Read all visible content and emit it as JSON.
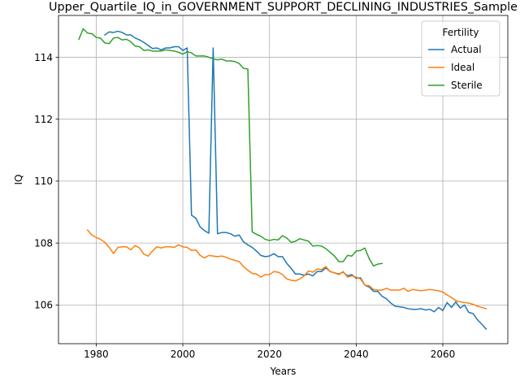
{
  "chart_data": {
    "type": "line",
    "title": "Upper_Quartile_IQ_in_GOVERNMENT_SUPPORT_DECLINING_INDUSTRIES_Sample",
    "xlabel": "Years",
    "ylabel": "IQ",
    "xlim": [
      1971.3,
      2075.0
    ],
    "ylim": [
      104.75,
      115.35
    ],
    "xticks": [
      1980,
      2000,
      2020,
      2040,
      2060
    ],
    "yticks": [
      106,
      108,
      110,
      112,
      114
    ],
    "grid": true,
    "legend": {
      "title": "Fertility",
      "placement": "top-right"
    },
    "series": [
      {
        "name": "Actual",
        "color": "#1f77b4",
        "x": [
          1982,
          1983,
          1984,
          1985,
          1986,
          1987,
          1988,
          1989,
          1990,
          1991,
          1992,
          1993,
          1994,
          1995,
          1996,
          1997,
          1998,
          1999,
          2000,
          2001,
          2002,
          2003,
          2004,
          2005,
          2006,
          2007,
          2008,
          2009,
          2010,
          2011,
          2012,
          2013,
          2014,
          2015,
          2016,
          2017,
          2018,
          2019,
          2020,
          2021,
          2022,
          2023,
          2024,
          2025,
          2026,
          2027,
          2028,
          2029,
          2030,
          2031,
          2032,
          2033,
          2034,
          2035,
          2036,
          2037,
          2038,
          2039,
          2040,
          2041,
          2042,
          2043,
          2044,
          2045,
          2046,
          2047,
          2048,
          2049,
          2050,
          2051,
          2052,
          2053,
          2054,
          2055,
          2056,
          2057,
          2058,
          2059,
          2060,
          2061,
          2062,
          2063,
          2064,
          2065,
          2066,
          2067,
          2068,
          2069,
          2070
        ],
        "y": [
          114.72,
          114.82,
          114.8,
          114.84,
          114.8,
          114.72,
          114.72,
          114.62,
          114.56,
          114.48,
          114.38,
          114.28,
          114.3,
          114.24,
          114.3,
          114.3,
          114.34,
          114.34,
          114.22,
          114.3,
          108.9,
          108.8,
          108.52,
          108.4,
          108.32,
          114.3,
          108.3,
          108.34,
          108.34,
          108.3,
          108.22,
          108.26,
          108.04,
          107.94,
          107.86,
          107.74,
          107.6,
          107.56,
          107.58,
          107.66,
          107.56,
          107.56,
          107.34,
          107.18,
          107.0,
          107.0,
          106.96,
          107.0,
          106.94,
          107.08,
          107.08,
          107.2,
          107.08,
          107.04,
          107.0,
          107.06,
          106.94,
          106.98,
          106.86,
          106.88,
          106.64,
          106.58,
          106.44,
          106.44,
          106.28,
          106.2,
          106.06,
          105.96,
          105.94,
          105.92,
          105.88,
          105.86,
          105.86,
          105.88,
          105.84,
          105.86,
          105.78,
          105.92,
          105.82,
          106.08,
          105.92,
          106.1,
          105.9,
          106.0,
          105.76,
          105.72,
          105.52,
          105.38,
          105.22
        ]
      },
      {
        "name": "Ideal",
        "color": "#ff7f0e",
        "x": [
          1978,
          1979,
          1980,
          1981,
          1982,
          1983,
          1984,
          1985,
          1986,
          1987,
          1988,
          1989,
          1990,
          1991,
          1992,
          1993,
          1994,
          1995,
          1996,
          1997,
          1998,
          1999,
          2000,
          2001,
          2002,
          2003,
          2004,
          2005,
          2006,
          2007,
          2008,
          2009,
          2010,
          2011,
          2012,
          2013,
          2014,
          2015,
          2016,
          2017,
          2018,
          2019,
          2020,
          2021,
          2022,
          2023,
          2024,
          2025,
          2026,
          2027,
          2028,
          2029,
          2030,
          2031,
          2032,
          2033,
          2034,
          2035,
          2036,
          2037,
          2038,
          2039,
          2040,
          2041,
          2042,
          2043,
          2044,
          2045,
          2046,
          2047,
          2048,
          2049,
          2050,
          2051,
          2052,
          2053,
          2054,
          2055,
          2056,
          2057,
          2058,
          2059,
          2060,
          2061,
          2062,
          2063,
          2064,
          2065,
          2066,
          2067,
          2068,
          2069,
          2070
        ],
        "y": [
          108.42,
          108.26,
          108.18,
          108.12,
          108.02,
          107.86,
          107.66,
          107.86,
          107.88,
          107.88,
          107.78,
          107.92,
          107.84,
          107.64,
          107.58,
          107.74,
          107.88,
          107.84,
          107.88,
          107.88,
          107.86,
          107.94,
          107.88,
          107.86,
          107.76,
          107.78,
          107.6,
          107.52,
          107.6,
          107.58,
          107.56,
          107.58,
          107.54,
          107.48,
          107.44,
          107.4,
          107.24,
          107.12,
          107.02,
          107.0,
          106.9,
          106.98,
          106.98,
          107.08,
          107.06,
          106.98,
          106.84,
          106.8,
          106.78,
          106.84,
          106.94,
          107.1,
          107.06,
          107.16,
          107.14,
          107.24,
          107.08,
          107.04,
          106.98,
          107.08,
          106.9,
          106.94,
          106.9,
          106.84,
          106.64,
          106.62,
          106.5,
          106.48,
          106.48,
          106.54,
          106.48,
          106.48,
          106.48,
          106.54,
          106.44,
          106.5,
          106.48,
          106.46,
          106.48,
          106.5,
          106.48,
          106.46,
          106.42,
          106.32,
          106.24,
          106.14,
          106.1,
          106.08,
          106.06,
          106.02,
          105.96,
          105.92,
          105.88
        ]
      },
      {
        "name": "Sterile",
        "color": "#2ca02c",
        "x": [
          1976,
          1977,
          1978,
          1979,
          1980,
          1981,
          1982,
          1983,
          1984,
          1985,
          1986,
          1987,
          1988,
          1989,
          1990,
          1991,
          1992,
          1993,
          1994,
          1995,
          1996,
          1997,
          1998,
          1999,
          2000,
          2001,
          2002,
          2003,
          2004,
          2005,
          2006,
          2007,
          2008,
          2009,
          2010,
          2011,
          2012,
          2013,
          2014,
          2015,
          2016,
          2017,
          2018,
          2019,
          2020,
          2021,
          2022,
          2023,
          2024,
          2025,
          2026,
          2027,
          2028,
          2029,
          2030,
          2031,
          2032,
          2033,
          2034,
          2035,
          2036,
          2037,
          2038,
          2039,
          2040,
          2041,
          2042,
          2043,
          2044,
          2045,
          2046
        ],
        "y": [
          114.58,
          114.92,
          114.78,
          114.76,
          114.64,
          114.62,
          114.46,
          114.44,
          114.62,
          114.64,
          114.56,
          114.58,
          114.5,
          114.36,
          114.34,
          114.22,
          114.24,
          114.2,
          114.2,
          114.2,
          114.24,
          114.22,
          114.2,
          114.16,
          114.1,
          114.18,
          114.14,
          114.04,
          114.04,
          114.04,
          114.0,
          113.94,
          113.92,
          113.94,
          113.88,
          113.88,
          113.86,
          113.8,
          113.64,
          113.62,
          108.36,
          108.28,
          108.22,
          108.12,
          108.08,
          108.12,
          108.1,
          108.24,
          108.16,
          108.02,
          108.06,
          108.14,
          108.1,
          108.06,
          107.9,
          107.92,
          107.9,
          107.82,
          107.7,
          107.58,
          107.4,
          107.4,
          107.6,
          107.58,
          107.74,
          107.76,
          107.84,
          107.5,
          107.26,
          107.32,
          107.34
        ]
      }
    ]
  }
}
